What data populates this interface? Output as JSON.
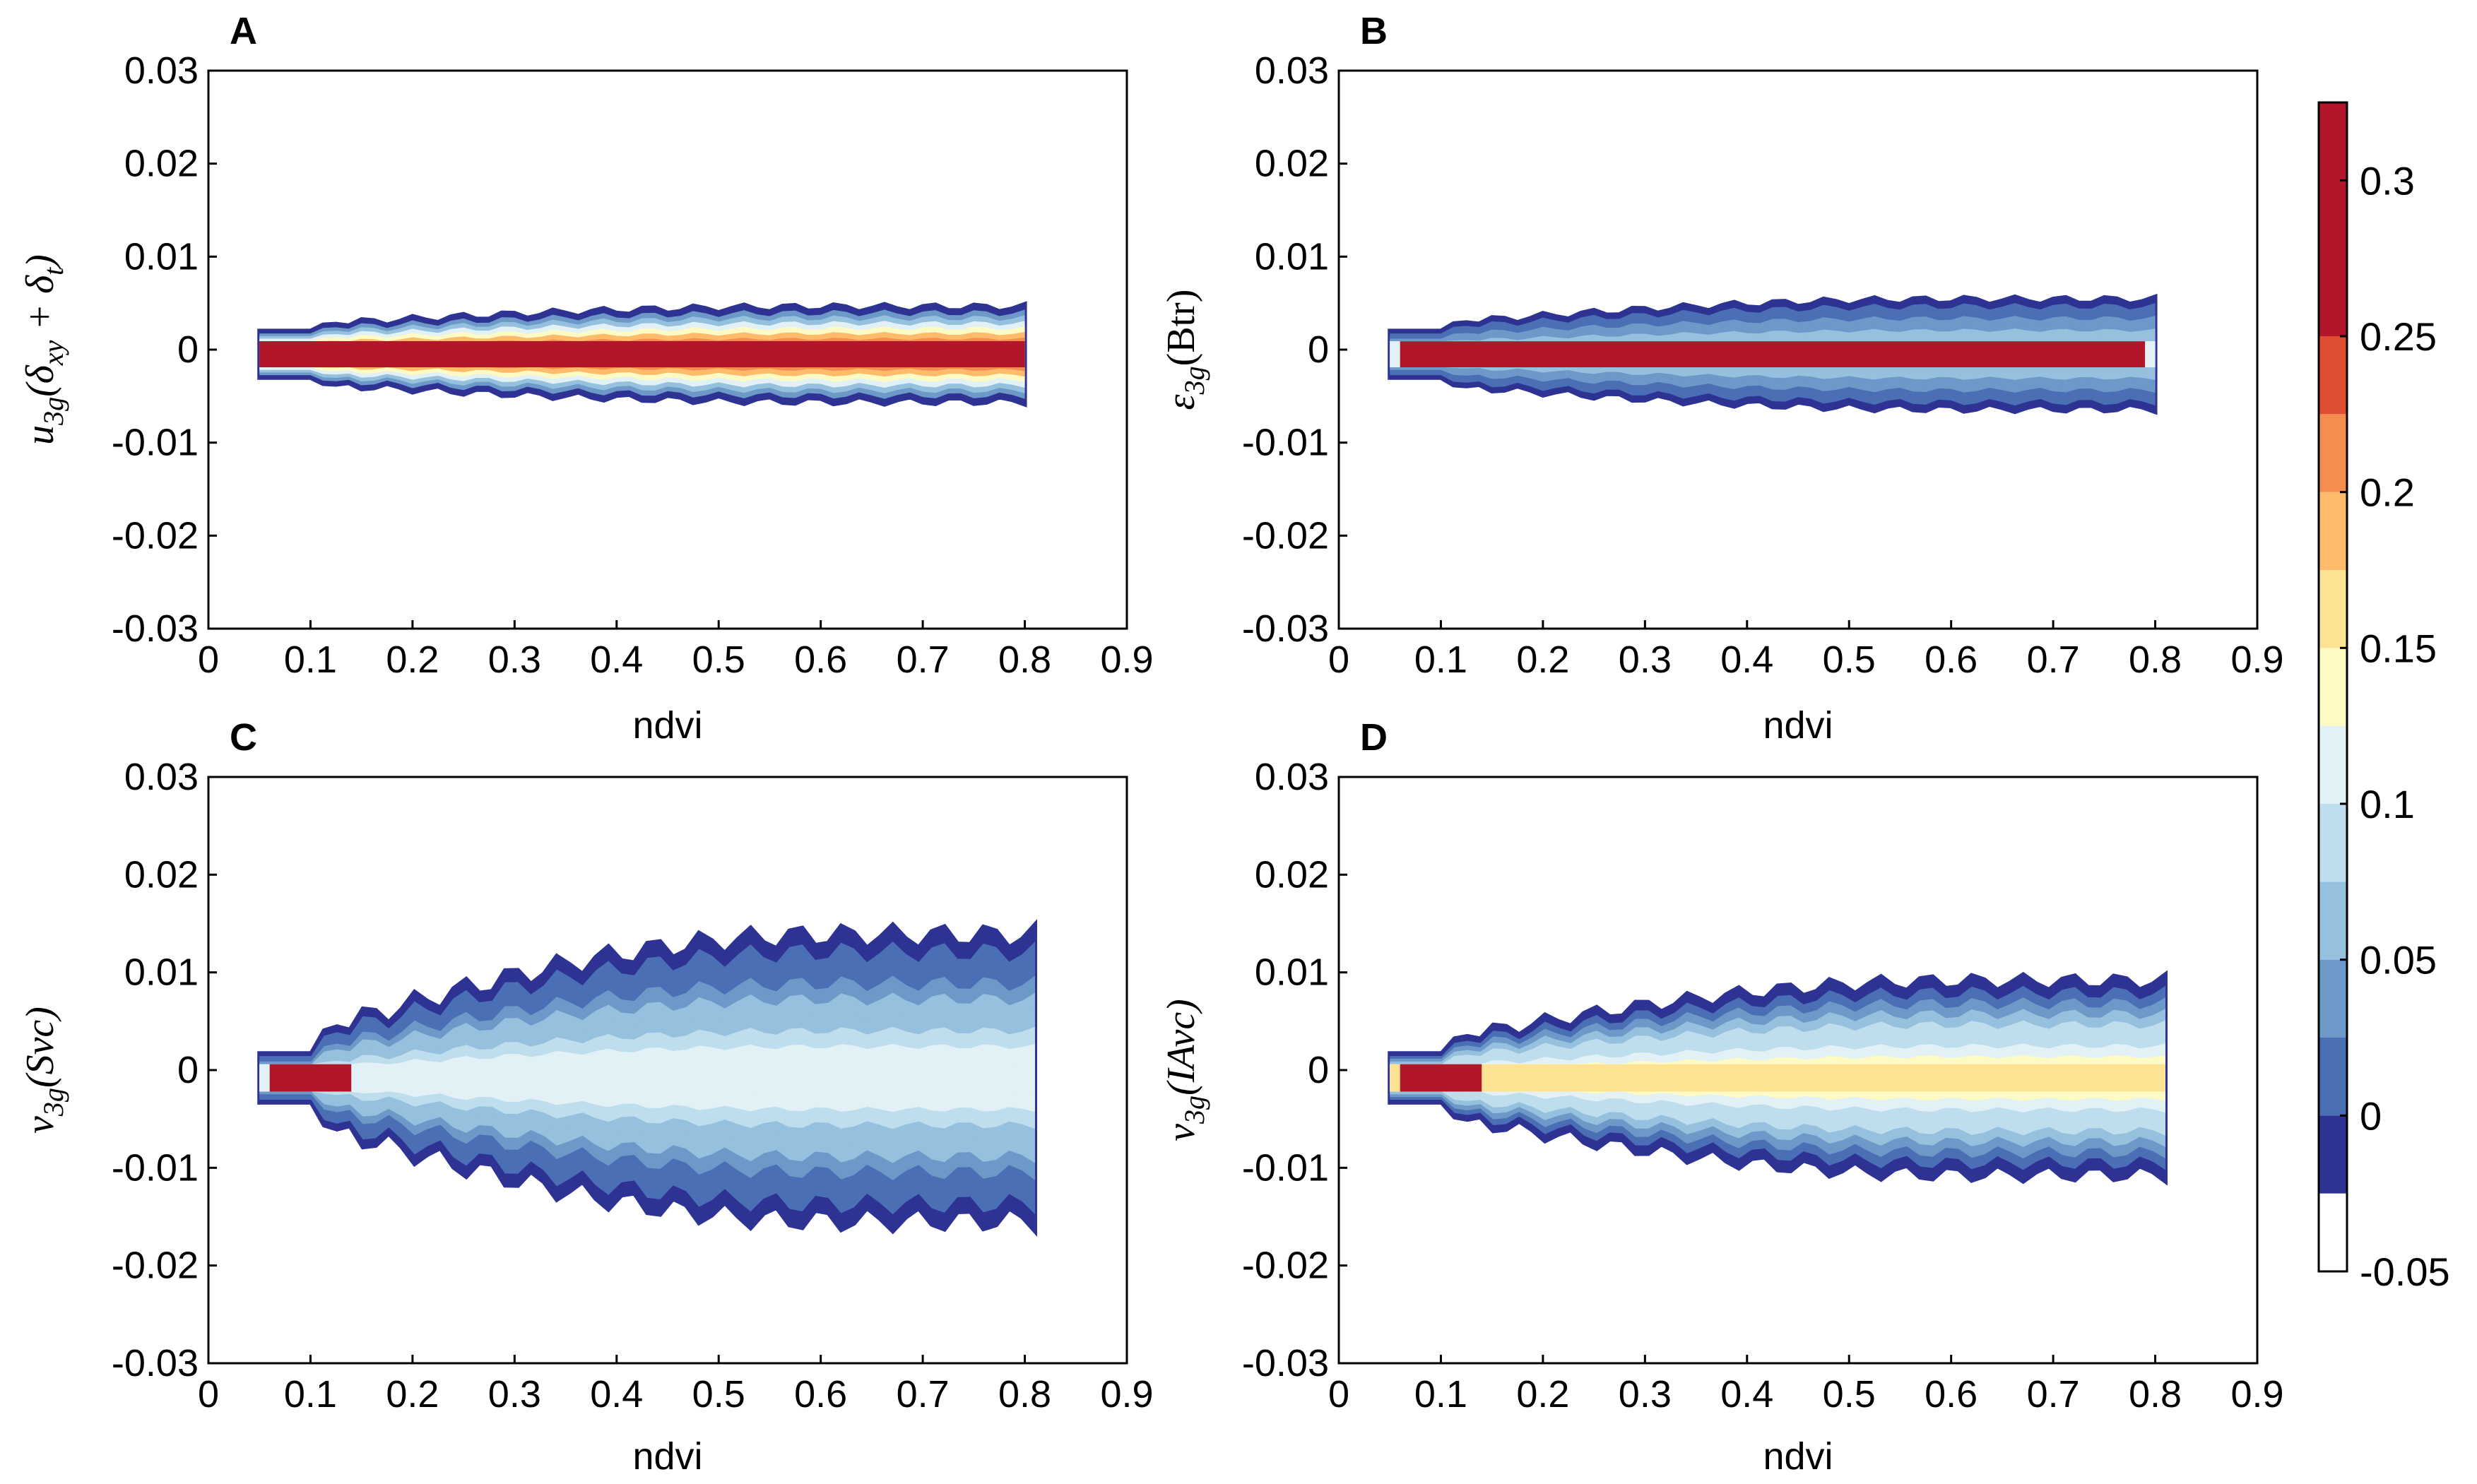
{
  "colors": {
    "levels": [
      "#ffffff",
      "#2e3393",
      "#4a6fb5",
      "#6d99c9",
      "#95c1de",
      "#bedded",
      "#e2f1f5",
      "#fdfbc3",
      "#fde294",
      "#fdbb6b",
      "#f68c4f",
      "#df4d32",
      "#b2162a"
    ],
    "axis": "#000000"
  },
  "chart_data": [
    {
      "type": "contourf",
      "panel_label": "A",
      "xlabel": "",
      "ylabel": "u_3g(δ_xy + δ_t)",
      "xlim": [
        0,
        0.9
      ],
      "ylim": [
        -0.03,
        0.03
      ],
      "xticks": [
        "0",
        "0.1",
        "0.2",
        "0.3",
        "0.4",
        "0.5",
        "0.6",
        "0.7",
        "0.8",
        "0.9"
      ],
      "yticks": [
        "0.03",
        "0.02",
        "0.01",
        "0",
        "-0.01",
        "-0.02",
        "-0.03"
      ],
      "model": {
        "xstart": 0.05,
        "xend": 0.8,
        "center": -0.0005,
        "env_min": 0.0028,
        "env_max": 0.005,
        "core_half": 0.0014,
        "core_value": 0.32,
        "mid_value": 0.3,
        "wave_amp": 0.0004
      }
    },
    {
      "type": "contourf",
      "panel_label": "B",
      "xlabel": "",
      "ylabel": "ε_3g(Btr)",
      "xlim": [
        0,
        0.9
      ],
      "ylim": [
        -0.03,
        0.03
      ],
      "xticks": [
        "0",
        "0.1",
        "0.2",
        "0.3",
        "0.4",
        "0.5",
        "0.6",
        "0.7",
        "0.8",
        "0.9"
      ],
      "yticks": [
        "0.03",
        "0.02",
        "0.01",
        "0",
        "-0.01",
        "-0.02",
        "-0.03"
      ],
      "model": {
        "xstart": 0.05,
        "xend": 0.8,
        "center": -0.0005,
        "env_min": 0.0028,
        "env_max": 0.0058,
        "core_half": 0.0014,
        "core_value": 0.32,
        "mid_value": 0.1,
        "wave_amp": 0.0004
      }
    },
    {
      "type": "contourf",
      "panel_label": "C",
      "xlabel": "ndvi",
      "ylabel": "v_3g(Svc)",
      "xlim": [
        0,
        0.9
      ],
      "ylim": [
        -0.03,
        0.03
      ],
      "xticks": [
        "0",
        "0.1",
        "0.2",
        "0.3",
        "0.4",
        "0.5",
        "0.6",
        "0.7",
        "0.8",
        "0.9"
      ],
      "yticks": [
        "0.03",
        "0.02",
        "0.01",
        "0",
        "-0.01",
        "-0.02",
        "-0.03"
      ],
      "model": {
        "xstart": 0.05,
        "xend": 0.81,
        "center": -0.0008,
        "env_min": 0.0028,
        "env_max": 0.0145,
        "core_half": 0.0014,
        "core_value": 0.32,
        "mid_value": 0.12,
        "wave_amp": 0.0012
      }
    },
    {
      "type": "contourf",
      "panel_label": "D",
      "xlabel": "ndvi",
      "ylabel": "v_3g(IAvc)",
      "xlim": [
        0,
        0.9
      ],
      "ylim": [
        -0.03,
        0.03
      ],
      "xticks": [
        "0",
        "0.1",
        "0.2",
        "0.3",
        "0.4",
        "0.5",
        "0.6",
        "0.7",
        "0.8",
        "0.9"
      ],
      "yticks": [
        "0.03",
        "0.02",
        "0.01",
        "0",
        "-0.01",
        "-0.02",
        "-0.03"
      ],
      "model": {
        "xstart": 0.05,
        "xend": 0.81,
        "center": -0.0008,
        "env_min": 0.0028,
        "env_max": 0.0098,
        "core_half": 0.0014,
        "core_value": 0.32,
        "mid_value": 0.16,
        "wave_amp": 0.0008
      }
    }
  ],
  "colorbar": {
    "levels": [
      -0.05,
      -0.025,
      0,
      0.025,
      0.05,
      0.075,
      0.1,
      0.125,
      0.15,
      0.175,
      0.2,
      0.225,
      0.25,
      0.275,
      0.3,
      0.325
    ],
    "tick_values": [
      0.3,
      0.25,
      0.2,
      0.15,
      0.1,
      0.05,
      0,
      -0.05
    ],
    "tick_labels": [
      "0.3",
      "0.25",
      "0.2",
      "0.15",
      "0.1",
      "0.05",
      "0",
      "-0.05"
    ]
  }
}
